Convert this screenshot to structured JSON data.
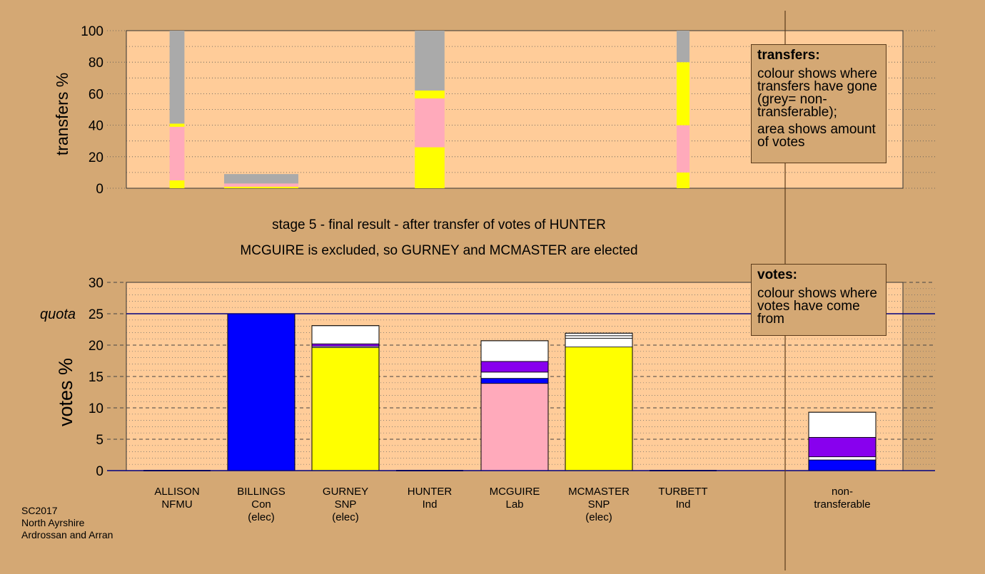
{
  "colors": {
    "background": "#D4A874",
    "plot_area": "#FFCC99",
    "Con": "#0000FF",
    "SNP": "#FFFF00",
    "Lab": "#FFAABB",
    "NFMU": "#FFFFFF",
    "Ind": "#8800EE",
    "non_transferable": "#AAAAAA",
    "quota_line": "#000080"
  },
  "heading": {
    "line1": "stage 5 - final result - after transfer of votes of HUNTER",
    "line2": "MCGUIRE is excluded, so GURNEY and MCMASTER are elected"
  },
  "legend_transfers": {
    "title": "transfers:",
    "line1": "colour shows where transfers have gone (grey= non-transferable);",
    "line2": "area shows amount of votes"
  },
  "legend_votes": {
    "title": "votes:",
    "line1": "colour shows where votes have come from"
  },
  "footnote": [
    "SC2017",
    "North Ayrshire",
    "Ardrossan and Arran"
  ],
  "chart_data": [
    {
      "type": "bar",
      "title": "",
      "xlabel": "",
      "ylabel": "transfers %",
      "ylim": [
        0,
        100
      ],
      "yticks": [
        "0",
        "20",
        "40",
        "60",
        "80",
        "100"
      ],
      "grid": true,
      "legend_position": "top-right",
      "bars": [
        {
          "slot": 0,
          "width_votes_pct": 0.6,
          "segments": [
            {
              "party": "SNP",
              "value": 5
            },
            {
              "party": "Lab",
              "value": 34
            },
            {
              "party": "SNP",
              "value": 2
            },
            {
              "party": "non_transferable",
              "value": 59
            }
          ]
        },
        {
          "slot": 1,
          "width_votes_pct": 3.0,
          "segments": [
            {
              "party": "SNP",
              "value": 1
            },
            {
              "party": "Lab",
              "value": 2
            },
            {
              "party": "non_transferable",
              "value": 6
            }
          ]
        },
        {
          "slot": 3,
          "width_votes_pct": 1.2,
          "segments": [
            {
              "party": "SNP",
              "value": 26
            },
            {
              "party": "Lab",
              "value": 31
            },
            {
              "party": "SNP",
              "value": 5
            },
            {
              "party": "non_transferable",
              "value": 38
            }
          ]
        },
        {
          "slot": 6,
          "width_votes_pct": 0.4,
          "segments": [
            {
              "party": "SNP",
              "value": 10
            },
            {
              "party": "Lab",
              "value": 30
            },
            {
              "party": "SNP",
              "value": 40
            },
            {
              "party": "non_transferable",
              "value": 20
            }
          ]
        }
      ]
    },
    {
      "type": "bar",
      "title": "",
      "xlabel": "",
      "ylabel": "votes %",
      "ylim": [
        0,
        30
      ],
      "yticks": [
        "0",
        "5",
        "10",
        "15",
        "20",
        "25",
        "30"
      ],
      "quota": 25,
      "quota_label": "quota",
      "grid": true,
      "legend_position": "top-right",
      "candidates": [
        {
          "name": "ALLISON",
          "party": "NFMU",
          "note": "",
          "segments": []
        },
        {
          "name": "BILLINGS",
          "party": "Con",
          "note": "(elec)",
          "segments": [
            {
              "color": "Con",
              "value": 25.0
            }
          ]
        },
        {
          "name": "GURNEY",
          "party": "SNP",
          "note": "(elec)",
          "segments": [
            {
              "color": "SNP",
              "value": 19.6
            },
            {
              "color": "NFMU",
              "value": 0.2
            },
            {
              "color": "Ind",
              "value": 0.4
            },
            {
              "color": "NFMU",
              "value": 2.9
            }
          ]
        },
        {
          "name": "HUNTER",
          "party": "Ind",
          "note": "",
          "segments": []
        },
        {
          "name": "MCGUIRE",
          "party": "Lab",
          "note": "",
          "segments": [
            {
              "color": "Lab",
              "value": 13.9
            },
            {
              "color": "Con",
              "value": 0.8
            },
            {
              "color": "NFMU",
              "value": 1.0
            },
            {
              "color": "Ind",
              "value": 1.7
            },
            {
              "color": "NFMU",
              "value": 3.3
            }
          ]
        },
        {
          "name": "MCMASTER",
          "party": "SNP",
          "note": "(elec)",
          "segments": [
            {
              "color": "SNP",
              "value": 19.7
            },
            {
              "color": "NFMU",
              "value": 1.4
            },
            {
              "color": "NFMU",
              "value": 0.4
            },
            {
              "color": "NFMU",
              "value": 0.4
            }
          ]
        },
        {
          "name": "TURBETT",
          "party": "Ind",
          "note": "",
          "segments": []
        }
      ],
      "non_transferable": {
        "label_line1": "non-",
        "label_line2": "transferable",
        "segments": [
          {
            "color": "Con",
            "value": 1.7
          },
          {
            "color": "NFMU",
            "value": 0.5
          },
          {
            "color": "Ind",
            "value": 3.1
          },
          {
            "color": "NFMU",
            "value": 4.0
          }
        ]
      }
    }
  ]
}
